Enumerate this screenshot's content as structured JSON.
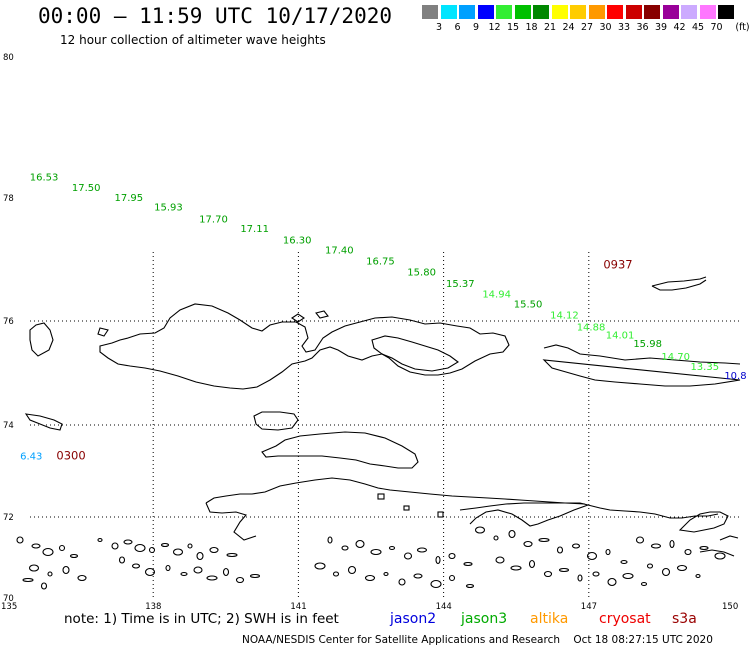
{
  "header": {
    "title": "00:00 – 11:59 UTC 10/17/2020",
    "subtitle": "12 hour collection of altimeter wave heights"
  },
  "legend": {
    "unit": "(ft)",
    "swatches": [
      {
        "color": "#808080",
        "label": "3"
      },
      {
        "color": "#00e5ff",
        "label": "6"
      },
      {
        "color": "#00a0ff",
        "label": "9"
      },
      {
        "color": "#0000ff",
        "label": "12"
      },
      {
        "color": "#33ee33",
        "label": "15"
      },
      {
        "color": "#00c000",
        "label": "18"
      },
      {
        "color": "#008800",
        "label": "21"
      },
      {
        "color": "#ffff00",
        "label": "24"
      },
      {
        "color": "#ffcc00",
        "label": "27"
      },
      {
        "color": "#ff9900",
        "label": "30"
      },
      {
        "color": "#ff0000",
        "label": "33"
      },
      {
        "color": "#cc0000",
        "label": "36"
      },
      {
        "color": "#880000",
        "label": "39"
      },
      {
        "color": "#990099",
        "label": "42"
      },
      {
        "color": "#ccaaff",
        "label": "45"
      },
      {
        "color": "#ff77ff",
        "label": "70"
      },
      {
        "color": "#000000",
        "label": ""
      }
    ]
  },
  "axes": {
    "lat_labels": [
      "80",
      "78",
      "76",
      "74",
      "72",
      "70"
    ],
    "lon_labels": [
      "135",
      "138",
      "141",
      "144",
      "147",
      "150"
    ]
  },
  "track": {
    "time_labels": [
      {
        "text": "0937",
        "color": "#880000",
        "lon": 147.3,
        "lat": 76.85
      },
      {
        "text": "0300",
        "color": "#880000",
        "lon": 136.0,
        "lat": 73.25
      }
    ],
    "points": [
      {
        "v": "16.53",
        "color": "#00a000",
        "lon": 135.45,
        "lat": 78.25
      },
      {
        "v": "17.50",
        "color": "#00a000",
        "lon": 136.32,
        "lat": 78.1
      },
      {
        "v": "17.95",
        "color": "#00a000",
        "lon": 137.2,
        "lat": 77.95
      },
      {
        "v": "15.93",
        "color": "#00a000",
        "lon": 138.02,
        "lat": 77.8
      },
      {
        "v": "17.70",
        "color": "#00a000",
        "lon": 138.95,
        "lat": 77.6
      },
      {
        "v": "17.11",
        "color": "#00a000",
        "lon": 139.8,
        "lat": 77.45
      },
      {
        "v": "16.30",
        "color": "#00a000",
        "lon": 140.68,
        "lat": 77.26
      },
      {
        "v": "17.40",
        "color": "#00a000",
        "lon": 141.55,
        "lat": 77.1
      },
      {
        "v": "16.75",
        "color": "#00a000",
        "lon": 142.4,
        "lat": 76.92
      },
      {
        "v": "15.80",
        "color": "#00a000",
        "lon": 143.25,
        "lat": 76.74
      },
      {
        "v": "15.37",
        "color": "#00a000",
        "lon": 144.05,
        "lat": 76.55
      },
      {
        "v": "14.94",
        "color": "#33ee33",
        "lon": 144.8,
        "lat": 76.38
      },
      {
        "v": "15.50",
        "color": "#00a000",
        "lon": 145.45,
        "lat": 76.22
      },
      {
        "v": "14.12",
        "color": "#33ee33",
        "lon": 146.2,
        "lat": 76.04
      },
      {
        "v": "14.88",
        "color": "#33ee33",
        "lon": 146.75,
        "lat": 75.82
      },
      {
        "v": "14.01",
        "color": "#33ee33",
        "lon": 147.35,
        "lat": 75.66
      },
      {
        "v": "15.98",
        "color": "#00a000",
        "lon": 147.92,
        "lat": 75.5
      },
      {
        "v": "14.70",
        "color": "#33ee33",
        "lon": 148.5,
        "lat": 75.25
      },
      {
        "v": "13.35",
        "color": "#33ee33",
        "lon": 149.1,
        "lat": 75.06
      },
      {
        "v": "10.8",
        "color": "#0000cc",
        "lon": 149.8,
        "lat": 74.88
      },
      {
        "v": "6.43",
        "color": "#00a0ff",
        "lon": 135.25,
        "lat": 73.25
      }
    ]
  },
  "note": {
    "prefix": "note:  1) Time is in UTC; 2) SWH is in feet",
    "satellites": [
      {
        "name": "jason2",
        "color": "#0000dd"
      },
      {
        "name": "jason3",
        "color": "#00aa00"
      },
      {
        "name": "altika",
        "color": "#ff9900"
      },
      {
        "name": "cryosat",
        "color": "#ee0000"
      },
      {
        "name": "s3a",
        "color": "#990000"
      }
    ]
  },
  "footer": "NOAA/NESDIS Center for Satellite Applications and Research    Oct 18 08:27:15 UTC 2020"
}
